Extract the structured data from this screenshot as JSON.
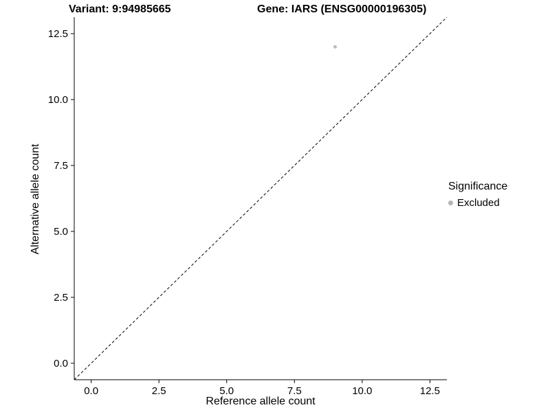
{
  "chart_data": {
    "type": "scatter",
    "title_left": "Variant: 9:94985665",
    "title_right": "Gene: IARS (ENSG00000196305)",
    "xlabel": "Reference allele count",
    "ylabel": "Alternative allele count",
    "xlim": [
      -0.625,
      13.125
    ],
    "ylim": [
      -0.625,
      13.125
    ],
    "xticks": [
      0.0,
      2.5,
      5.0,
      7.5,
      10.0,
      12.5
    ],
    "yticks": [
      0.0,
      2.5,
      5.0,
      7.5,
      10.0,
      12.5
    ],
    "grid": false,
    "axis_color": "#000000",
    "series": [
      {
        "name": "Excluded",
        "color": "#bdbdbd",
        "points": [
          {
            "x": 9,
            "y": 12
          }
        ]
      }
    ],
    "reference_line": {
      "type": "identity",
      "slope": 1,
      "intercept": 0,
      "style": "dashed",
      "color": "#000000"
    },
    "legend": {
      "title": "Significance",
      "position": "right",
      "entries": [
        {
          "label": "Excluded",
          "color": "#b5b5b5"
        }
      ]
    }
  }
}
